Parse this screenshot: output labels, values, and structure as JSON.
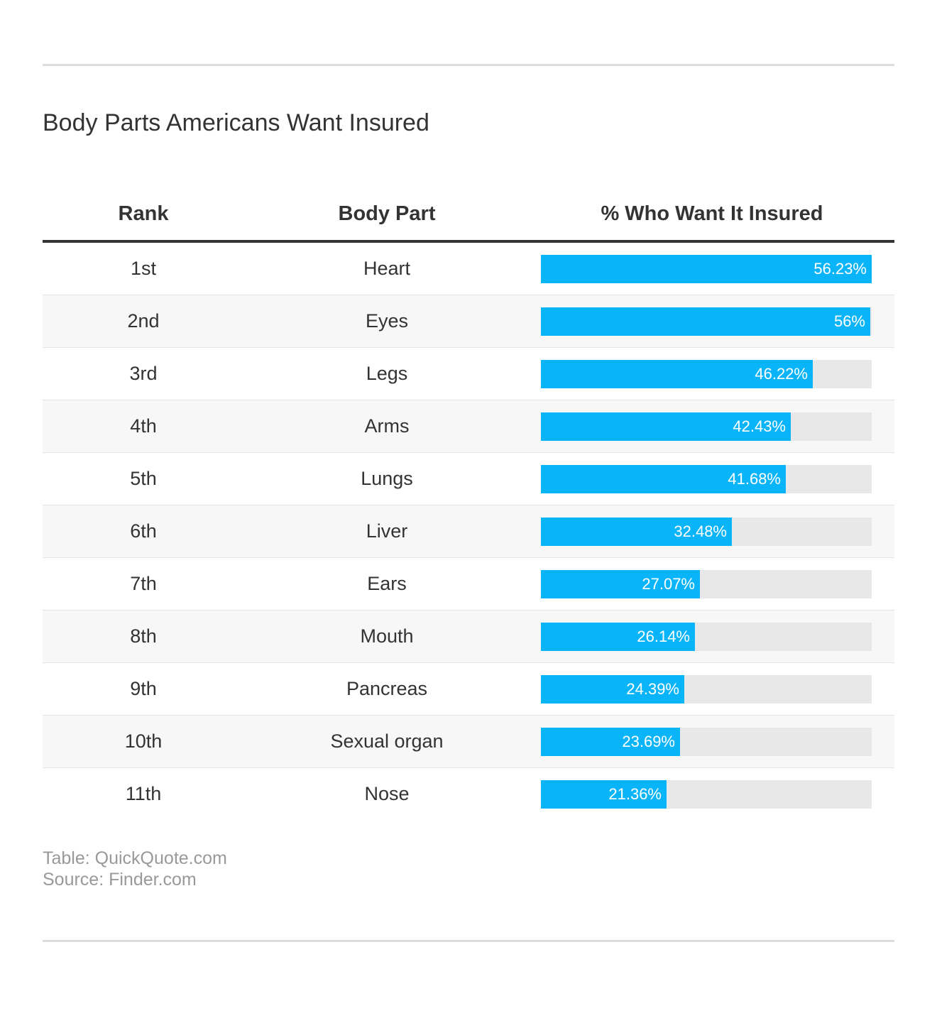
{
  "title": "Body Parts Americans Want Insured",
  "columns": {
    "rank": "Rank",
    "body_part": "Body Part",
    "percent": "% Who Want It Insured"
  },
  "chart_data": {
    "type": "table",
    "title": "Body Parts Americans Want Insured",
    "columns": [
      "Rank",
      "Body Part",
      "% Who Want It Insured"
    ],
    "rows": [
      {
        "rank": "1st",
        "body_part": "Heart",
        "value": 56.23,
        "label": "56.23%"
      },
      {
        "rank": "2nd",
        "body_part": "Eyes",
        "value": 56,
        "label": "56%"
      },
      {
        "rank": "3rd",
        "body_part": "Legs",
        "value": 46.22,
        "label": "46.22%"
      },
      {
        "rank": "4th",
        "body_part": "Arms",
        "value": 42.43,
        "label": "42.43%"
      },
      {
        "rank": "5th",
        "body_part": "Lungs",
        "value": 41.68,
        "label": "41.68%"
      },
      {
        "rank": "6th",
        "body_part": "Liver",
        "value": 32.48,
        "label": "32.48%"
      },
      {
        "rank": "7th",
        "body_part": "Ears",
        "value": 27.07,
        "label": "27.07%"
      },
      {
        "rank": "8th",
        "body_part": "Mouth",
        "value": 26.14,
        "label": "26.14%"
      },
      {
        "rank": "9th",
        "body_part": "Pancreas",
        "value": 24.39,
        "label": "24.39%"
      },
      {
        "rank": "10th",
        "body_part": "Sexual organ",
        "value": 23.69,
        "label": "23.69%"
      },
      {
        "rank": "11th",
        "body_part": "Nose",
        "value": 21.36,
        "label": "21.36%"
      }
    ],
    "bar_max": 56.23,
    "bar_color": "#0ab4f8",
    "track_color": "#e8e8e8"
  },
  "footer": {
    "table_credit": "Table: QuickQuote.com",
    "source": "Source: Finder.com"
  }
}
